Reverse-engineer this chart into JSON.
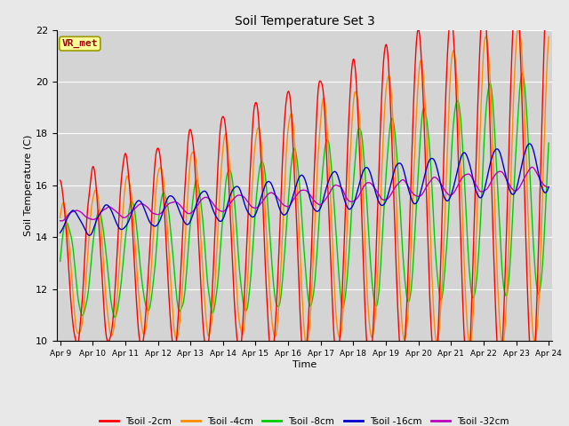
{
  "title": "Soil Temperature Set 3",
  "xlabel": "Time",
  "ylabel": "Soil Temperature (C)",
  "ylim": [
    10,
    22
  ],
  "background_color": "#e8e8e8",
  "plot_bg_color": "#d4d4d4",
  "annotation_text": "VR_met",
  "annotation_bg": "#ffff99",
  "annotation_border": "#999900",
  "legend_labels": [
    "Tsoil -2cm",
    "Tsoil -4cm",
    "Tsoil -8cm",
    "Tsoil -16cm",
    "Tsoil -32cm"
  ],
  "line_colors": [
    "#ff0000",
    "#ff8c00",
    "#00cc00",
    "#0000cc",
    "#bb00bb"
  ],
  "x_tick_labels": [
    "Apr 9",
    "Apr 10",
    "Apr 11",
    "Apr 12",
    "Apr 13",
    "Apr 14",
    "Apr 15",
    "Apr 16",
    "Apr 17",
    "Apr 18",
    "Apr 19",
    "Apr 20",
    "Apr 21",
    "Apr 22",
    "Apr 23",
    "Apr 24"
  ],
  "yticks": [
    10,
    12,
    14,
    16,
    18,
    20,
    22
  ]
}
